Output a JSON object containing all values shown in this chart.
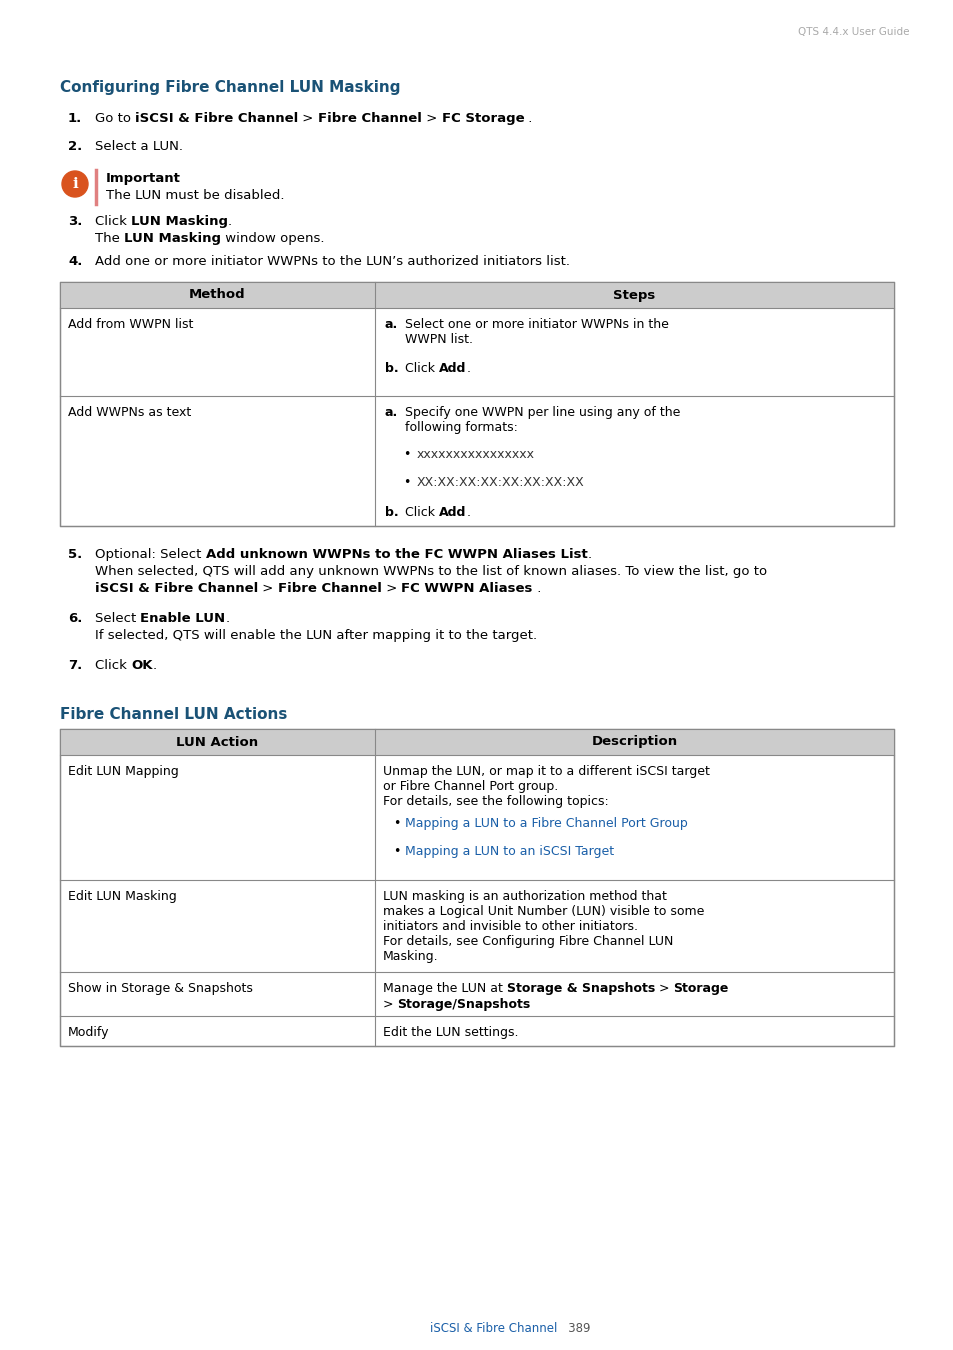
{
  "page_header": "QTS 4.4.x User Guide",
  "section1_title": "Configuring Fibre Channel LUN Masking",
  "section2_title": "Fibre Channel LUN Actions",
  "footer_link": "iSCSI & Fibre Channel",
  "footer_num": "389",
  "blue_color": "#1a5276",
  "link_color": "#1a5fa8",
  "orange_color": "#d9531e",
  "header_bg": "#cccccc",
  "table_border": "#888888",
  "text_color": "#000000"
}
